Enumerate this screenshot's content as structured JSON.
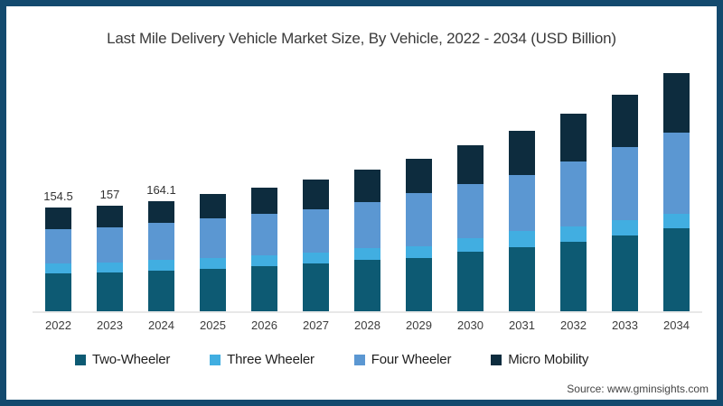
{
  "frame": {
    "border_color": "#134a6e",
    "background_color": "#ffffff"
  },
  "header": {
    "title": "Last Mile Delivery Vehicle Market Size, By Vehicle, 2022 - 2034 (USD Billion)"
  },
  "footer": {
    "source": "Source: www.gminsights.com"
  },
  "chart_data": {
    "type": "bar",
    "stacked": true,
    "title": "Last Mile Delivery Vehicle Market Size, By Vehicle, 2022 - 2034 (USD Billion)",
    "xlabel": "",
    "ylabel": "USD Billion",
    "ylim": [
      0,
      355
    ],
    "grid": false,
    "legend_position": "bottom",
    "axis_label_color": "#3c3c3c",
    "baseline_color": "#e8e8e8",
    "categories": [
      "2022",
      "2023",
      "2024",
      "2025",
      "2026",
      "2027",
      "2028",
      "2029",
      "2030",
      "2031",
      "2032",
      "2033",
      "2034"
    ],
    "series": [
      {
        "name": "Two-Wheeler",
        "color": "#0d5a73",
        "values": [
          56,
          57.5,
          60.5,
          63.5,
          67,
          70.5,
          76,
          79,
          89,
          95,
          103,
          112,
          123
        ]
      },
      {
        "name": "Three Wheeler",
        "color": "#41aee1",
        "values": [
          15,
          15,
          15.5,
          16,
          16.5,
          17,
          17.5,
          18,
          19,
          24,
          23,
          24,
          22
        ]
      },
      {
        "name": "Four Wheeler",
        "color": "#5b97d2",
        "values": [
          51.5,
          52,
          55.5,
          58.5,
          61,
          64,
          69,
          79,
          81,
          84,
          97,
          107.5,
          120.5
        ]
      },
      {
        "name": "Micro Mobility",
        "color": "#0d2c3e",
        "values": [
          32,
          32.5,
          32.6,
          36,
          39,
          44.5,
          47.5,
          51,
          57,
          64.5,
          70,
          78.5,
          88
        ]
      }
    ],
    "totals": [
      154.5,
      157,
      164.1,
      174,
      183.5,
      196,
      210,
      227,
      246,
      267.5,
      293,
      322,
      353.5
    ],
    "bar_labels": [
      "154.5",
      "157",
      "164.1",
      null,
      null,
      null,
      null,
      null,
      null,
      null,
      null,
      null,
      null
    ]
  }
}
